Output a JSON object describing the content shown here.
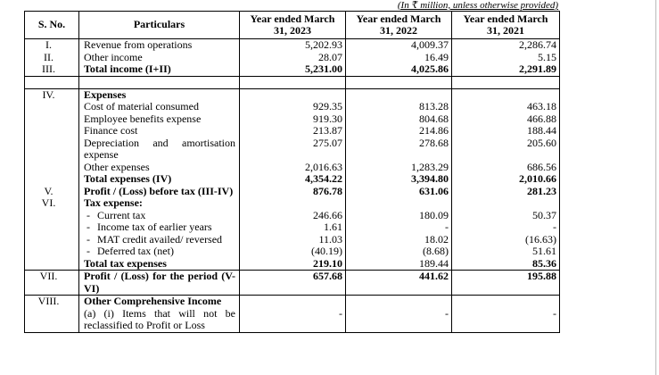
{
  "note": "(In ₹ million, unless otherwise provided)",
  "table": {
    "header": [
      "S. No.",
      "Particulars",
      "Year ended March 31, 2023",
      "Year ended March 31, 2022",
      "Year ended March 31, 2021"
    ],
    "groups": [
      {
        "rows": [
          {
            "sno": "I.",
            "particulars": "Revenue from operations",
            "values": [
              "5,202.93",
              "4,009.37",
              "2,286.74"
            ]
          },
          {
            "sno": "II.",
            "particulars": "Other income",
            "values": [
              "28.07",
              "16.49",
              "5.15"
            ]
          },
          {
            "sno": "III.",
            "particulars": "Total income (I+II)",
            "values": [
              "5,231.00",
              "4,025.86",
              "2,291.89"
            ],
            "bold": true
          }
        ]
      },
      {
        "spacer": true,
        "rows": []
      },
      {
        "rows": [
          {
            "sno": "IV.",
            "particulars": "Expenses",
            "bold": true
          },
          {
            "particulars": "Cost of material consumed",
            "values": [
              "929.35",
              "813.28",
              "463.18"
            ]
          },
          {
            "particulars": "Employee benefits expense",
            "values": [
              "919.30",
              "804.68",
              "466.88"
            ]
          },
          {
            "particulars": "Finance cost",
            "values": [
              "213.87",
              "214.86",
              "188.44"
            ]
          },
          {
            "particulars": "Depreciation and amortisation expense",
            "values": [
              "275.07",
              "278.68",
              "205.60"
            ]
          },
          {
            "particulars": "Other expenses",
            "values": [
              "2,016.63",
              "1,283.29",
              "686.56"
            ]
          },
          {
            "particulars": "Total expenses (IV)",
            "values": [
              "4,354.22",
              "3,394.80",
              "2,010.66"
            ],
            "bold": true
          },
          {
            "sno": "V.",
            "particulars": "Profit / (Loss) before tax (III-IV)",
            "values": [
              "876.78",
              "631.06",
              "281.23"
            ],
            "bold": true
          },
          {
            "sno": "VI.",
            "particulars": "Tax expense:",
            "bold": true
          },
          {
            "marker": "-",
            "particulars": "Current tax",
            "values": [
              "246.66",
              "180.09",
              "50.37"
            ]
          },
          {
            "marker": "-",
            "particulars": "Income tax of earlier years",
            "values": [
              "1.61",
              "-",
              "-"
            ]
          },
          {
            "marker": "-",
            "particulars": "MAT credit availed/ reversed",
            "values": [
              "11.03",
              "18.02",
              "(16.63)"
            ]
          },
          {
            "marker": "-",
            "particulars": "Deferred tax (net)",
            "values": [
              "(40.19)",
              "(8.68)",
              "51.61"
            ]
          },
          {
            "particulars": "Total tax expenses",
            "values": [
              "219.10",
              "189.44",
              "85.36"
            ],
            "bold": [
              true,
              true,
              false,
              true
            ]
          }
        ]
      },
      {
        "rows": [
          {
            "sno": "VII.",
            "particulars": "Profit / (Loss) for the period (V-VI)",
            "values": [
              "657.68",
              "441.62",
              "195.88"
            ],
            "bold": true
          }
        ]
      },
      {
        "rows": [
          {
            "sno": "VIII.",
            "particulars": "Other Comprehensive Income",
            "bold": true
          },
          {
            "particulars": "(a) (i) Items that will not be reclassified to Profit or Loss",
            "values": [
              "-",
              "-",
              "-"
            ]
          }
        ]
      }
    ]
  }
}
